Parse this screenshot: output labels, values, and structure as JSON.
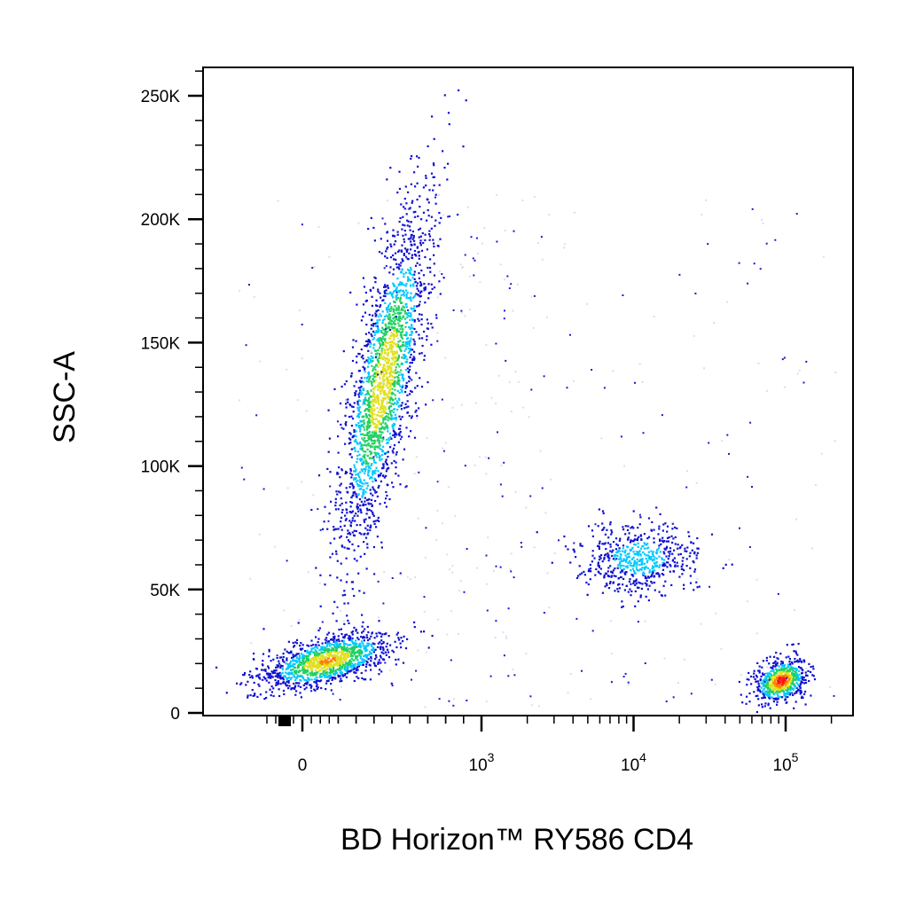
{
  "chart_data": {
    "type": "scatter",
    "style": "flow cytometry pseudocolor density dot plot",
    "xlabel": "BD Horizon™ RY586 CD4",
    "ylabel": "SSC-A",
    "x_scale": "biexponential",
    "x_ticks": [
      {
        "value": 0,
        "base": "0",
        "exp": ""
      },
      {
        "value": 1000,
        "base": "10",
        "exp": "3"
      },
      {
        "value": 10000,
        "base": "10",
        "exp": "4"
      },
      {
        "value": 100000,
        "base": "10",
        "exp": "5"
      }
    ],
    "y_scale": "linear",
    "ylim": [
      0,
      262144
    ],
    "y_ticks": [
      {
        "value": 0,
        "label": "0"
      },
      {
        "value": 50000,
        "label": "50K"
      },
      {
        "value": 100000,
        "label": "100K"
      },
      {
        "value": 150000,
        "label": "150K"
      },
      {
        "value": 200000,
        "label": "200K"
      },
      {
        "value": 250000,
        "label": "250K"
      }
    ],
    "grid": false,
    "legend": "none",
    "density_colors": [
      "#1010d0",
      "#00c8ff",
      "#20d060",
      "#e0e020",
      "#ff8000",
      "#ff1010"
    ],
    "populations": [
      {
        "cd4": 0,
        "ssc": 20000,
        "relative_density": 0.85
      },
      {
        "cd4": 450,
        "ssc": 135000,
        "relative_density": 0.8
      },
      {
        "cd4": 12000,
        "ssc": 63000,
        "relative_density": 0.45
      },
      {
        "cd4": 85000,
        "ssc": 14000,
        "relative_density": 1.0
      }
    ]
  }
}
